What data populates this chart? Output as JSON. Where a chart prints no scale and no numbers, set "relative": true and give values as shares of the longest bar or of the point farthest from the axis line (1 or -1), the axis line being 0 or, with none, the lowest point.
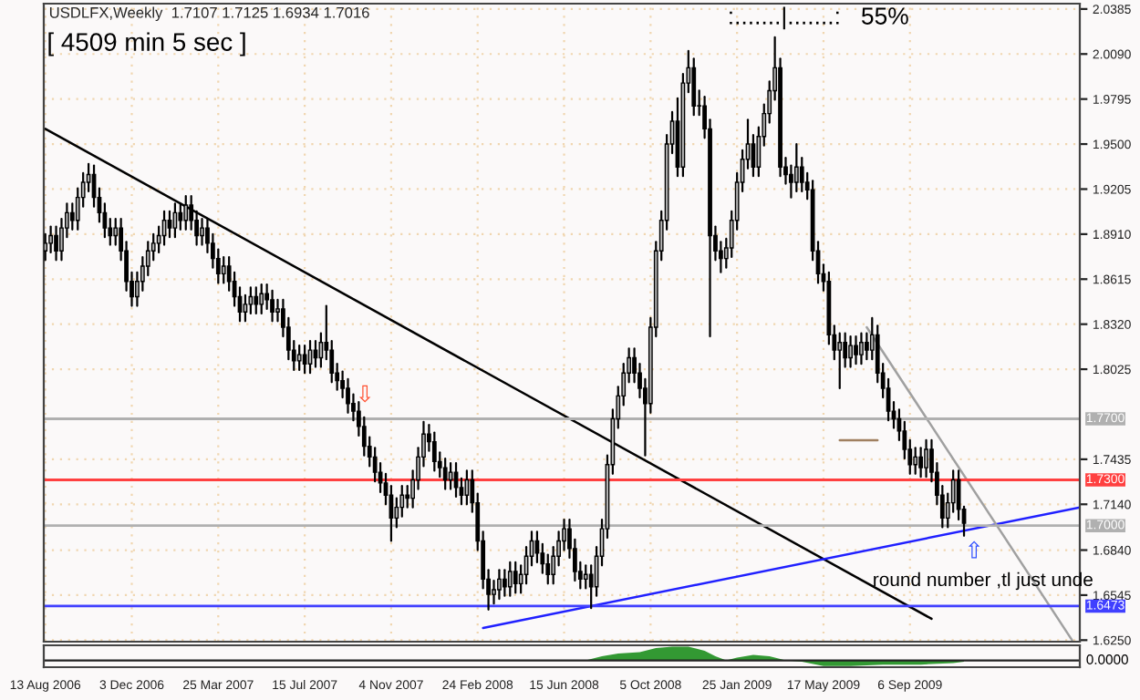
{
  "chart_data": [
    {
      "type": "candlestick",
      "title": "USDLFX,Weekly  1.7107 1.7125 1.6934 1.7016",
      "annotations": [
        "[ 4509 min 5 sec ]",
        ":.......|.......:   55%",
        "⇩",
        "⇧",
        "round number ,tl just unde"
      ],
      "x": [
        "2006-08-13",
        "2006-08-20",
        "2006-08-27",
        "2006-09-03",
        "2006-09-10",
        "2006-09-17",
        "2006-09-24",
        "2006-10-01",
        "2006-10-08",
        "2006-10-15",
        "2006-10-22",
        "2006-10-29",
        "2006-11-05",
        "2006-11-12",
        "2006-11-19",
        "2006-11-26",
        "2006-12-03",
        "2006-12-10",
        "2006-12-17",
        "2006-12-24",
        "2006-12-31",
        "2007-01-07",
        "2007-01-14",
        "2007-01-21",
        "2007-01-28",
        "2007-02-04",
        "2007-02-11",
        "2007-02-18",
        "2007-02-25",
        "2007-03-04",
        "2007-03-11",
        "2007-03-18",
        "2007-03-25",
        "2007-04-01",
        "2007-04-08",
        "2007-04-15",
        "2007-04-22",
        "2007-04-29",
        "2007-05-06",
        "2007-05-13",
        "2007-05-20",
        "2007-05-27",
        "2007-06-03",
        "2007-06-10",
        "2007-06-17",
        "2007-06-24",
        "2007-07-01",
        "2007-07-08",
        "2007-07-15",
        "2007-07-22",
        "2007-07-29",
        "2007-08-05",
        "2007-08-12",
        "2007-08-19",
        "2007-08-26",
        "2007-09-02",
        "2007-09-09",
        "2007-09-16",
        "2007-09-23",
        "2007-09-30",
        "2007-10-07",
        "2007-10-14",
        "2007-10-21",
        "2007-10-28",
        "2007-11-04",
        "2007-11-11",
        "2007-11-18",
        "2007-11-25",
        "2007-12-02",
        "2007-12-09",
        "2007-12-16",
        "2007-12-23",
        "2007-12-30",
        "2008-01-06",
        "2008-01-13",
        "2008-01-20",
        "2008-01-27",
        "2008-02-03",
        "2008-02-10",
        "2008-02-17",
        "2008-02-24",
        "2008-03-02",
        "2008-03-09",
        "2008-03-16",
        "2008-03-23",
        "2008-03-30",
        "2008-04-06",
        "2008-04-13",
        "2008-04-20",
        "2008-04-27",
        "2008-05-04",
        "2008-05-11",
        "2008-05-18",
        "2008-05-25",
        "2008-06-01",
        "2008-06-08",
        "2008-06-15",
        "2008-06-22",
        "2008-06-29",
        "2008-07-06",
        "2008-07-13",
        "2008-07-20",
        "2008-07-27",
        "2008-08-03",
        "2008-08-10",
        "2008-08-17",
        "2008-08-24",
        "2008-08-31",
        "2008-09-07",
        "2008-09-14",
        "2008-09-21",
        "2008-09-28",
        "2008-10-05",
        "2008-10-12",
        "2008-10-19",
        "2008-10-26",
        "2008-11-02",
        "2008-11-09",
        "2008-11-16",
        "2008-11-23",
        "2008-11-30",
        "2008-12-07",
        "2008-12-14",
        "2008-12-21",
        "2008-12-28",
        "2009-01-04",
        "2009-01-11",
        "2009-01-18",
        "2009-01-25",
        "2009-02-01",
        "2009-02-08",
        "2009-02-15",
        "2009-02-22",
        "2009-03-01",
        "2009-03-08",
        "2009-03-15",
        "2009-03-22",
        "2009-03-29",
        "2009-04-05",
        "2009-04-12",
        "2009-04-19",
        "2009-04-26",
        "2009-05-03",
        "2009-05-10",
        "2009-05-17",
        "2009-05-24",
        "2009-05-31",
        "2009-06-07",
        "2009-06-14",
        "2009-06-21",
        "2009-06-28",
        "2009-07-05",
        "2009-07-12",
        "2009-07-19",
        "2009-07-26",
        "2009-08-02",
        "2009-08-09",
        "2009-08-16",
        "2009-08-23",
        "2009-08-30",
        "2009-09-06",
        "2009-09-13",
        "2009-09-20",
        "2009-09-27",
        "2009-10-04",
        "2009-10-11",
        "2009-10-18",
        "2009-10-25",
        "2009-11-01",
        "2009-11-08",
        "2009-11-15"
      ],
      "ohlc": [
        [
          1.88,
          1.891,
          1.874,
          1.885
        ],
        [
          1.885,
          1.896,
          1.879,
          1.89
        ],
        [
          1.89,
          1.896,
          1.874,
          1.88
        ],
        [
          1.88,
          1.901,
          1.874,
          1.895
        ],
        [
          1.895,
          1.911,
          1.889,
          1.905
        ],
        [
          1.905,
          1.911,
          1.894,
          1.9
        ],
        [
          1.9,
          1.921,
          1.894,
          1.915
        ],
        [
          1.915,
          1.931,
          1.909,
          1.925
        ],
        [
          1.925,
          1.937,
          1.919,
          1.93
        ],
        [
          1.93,
          1.936,
          1.909,
          1.915
        ],
        [
          1.915,
          1.921,
          1.899,
          1.905
        ],
        [
          1.905,
          1.911,
          1.889,
          1.895
        ],
        [
          1.895,
          1.901,
          1.884,
          1.89
        ],
        [
          1.89,
          1.901,
          1.884,
          1.895
        ],
        [
          1.895,
          1.901,
          1.874,
          1.88
        ],
        [
          1.88,
          1.886,
          1.854,
          1.86
        ],
        [
          1.86,
          1.866,
          1.844,
          1.85
        ],
        [
          1.85,
          1.866,
          1.844,
          1.86
        ],
        [
          1.86,
          1.876,
          1.854,
          1.87
        ],
        [
          1.87,
          1.886,
          1.864,
          1.88
        ],
        [
          1.88,
          1.891,
          1.874,
          1.885
        ],
        [
          1.885,
          1.896,
          1.879,
          1.89
        ],
        [
          1.89,
          1.906,
          1.884,
          1.9
        ],
        [
          1.9,
          1.906,
          1.889,
          1.895
        ],
        [
          1.895,
          1.911,
          1.889,
          1.905
        ],
        [
          1.905,
          1.911,
          1.894,
          1.9
        ],
        [
          1.9,
          1.916,
          1.894,
          1.91
        ],
        [
          1.91,
          1.916,
          1.894,
          1.9
        ],
        [
          1.9,
          1.906,
          1.884,
          1.89
        ],
        [
          1.89,
          1.901,
          1.884,
          1.895
        ],
        [
          1.895,
          1.901,
          1.879,
          1.885
        ],
        [
          1.885,
          1.891,
          1.869,
          1.875
        ],
        [
          1.875,
          1.881,
          1.859,
          1.865
        ],
        [
          1.865,
          1.876,
          1.859,
          1.87
        ],
        [
          1.87,
          1.876,
          1.854,
          1.86
        ],
        [
          1.86,
          1.866,
          1.844,
          1.85
        ],
        [
          1.85,
          1.856,
          1.834,
          1.84
        ],
        [
          1.84,
          1.851,
          1.834,
          1.845
        ],
        [
          1.845,
          1.856,
          1.839,
          1.85
        ],
        [
          1.85,
          1.856,
          1.839,
          1.845
        ],
        [
          1.845,
          1.858,
          1.839,
          1.852
        ],
        [
          1.852,
          1.858,
          1.842,
          1.848
        ],
        [
          1.848,
          1.854,
          1.834,
          1.84
        ],
        [
          1.84,
          1.848,
          1.834,
          1.842
        ],
        [
          1.842,
          1.848,
          1.824,
          1.83
        ],
        [
          1.83,
          1.836,
          1.809,
          1.815
        ],
        [
          1.815,
          1.821,
          1.802,
          1.808
        ],
        [
          1.808,
          1.818,
          1.802,
          1.812
        ],
        [
          1.812,
          1.818,
          1.8,
          1.806
        ],
        [
          1.806,
          1.821,
          1.8,
          1.815
        ],
        [
          1.815,
          1.821,
          1.804,
          1.81
        ],
        [
          1.81,
          1.826,
          1.804,
          1.82
        ],
        [
          1.82,
          1.844,
          1.809,
          1.815
        ],
        [
          1.815,
          1.821,
          1.794,
          1.8
        ],
        [
          1.8,
          1.806,
          1.789,
          1.795
        ],
        [
          1.795,
          1.801,
          1.784,
          1.79
        ],
        [
          1.79,
          1.796,
          1.774,
          1.78
        ],
        [
          1.78,
          1.786,
          1.769,
          1.775
        ],
        [
          1.775,
          1.781,
          1.759,
          1.765
        ],
        [
          1.765,
          1.771,
          1.746,
          1.752
        ],
        [
          1.752,
          1.758,
          1.739,
          1.745
        ],
        [
          1.745,
          1.751,
          1.729,
          1.735
        ],
        [
          1.735,
          1.741,
          1.722,
          1.728
        ],
        [
          1.728,
          1.734,
          1.714,
          1.72
        ],
        [
          1.72,
          1.726,
          1.69,
          1.705
        ],
        [
          1.705,
          1.718,
          1.699,
          1.712
        ],
        [
          1.712,
          1.726,
          1.706,
          1.72
        ],
        [
          1.72,
          1.726,
          1.712,
          1.718
        ],
        [
          1.718,
          1.736,
          1.712,
          1.73
        ],
        [
          1.73,
          1.751,
          1.724,
          1.745
        ],
        [
          1.745,
          1.768,
          1.739,
          1.76
        ],
        [
          1.76,
          1.766,
          1.749,
          1.755
        ],
        [
          1.755,
          1.761,
          1.736,
          1.742
        ],
        [
          1.742,
          1.748,
          1.732,
          1.738
        ],
        [
          1.738,
          1.744,
          1.724,
          1.73
        ],
        [
          1.73,
          1.741,
          1.724,
          1.735
        ],
        [
          1.735,
          1.741,
          1.719,
          1.725
        ],
        [
          1.725,
          1.731,
          1.714,
          1.72
        ],
        [
          1.72,
          1.736,
          1.714,
          1.73
        ],
        [
          1.73,
          1.736,
          1.709,
          1.715
        ],
        [
          1.715,
          1.721,
          1.684,
          1.69
        ],
        [
          1.69,
          1.696,
          1.659,
          1.665
        ],
        [
          1.665,
          1.671,
          1.645,
          1.655
        ],
        [
          1.655,
          1.664,
          1.649,
          1.658
        ],
        [
          1.658,
          1.671,
          1.652,
          1.665
        ],
        [
          1.665,
          1.671,
          1.654,
          1.66
        ],
        [
          1.66,
          1.676,
          1.654,
          1.67
        ],
        [
          1.67,
          1.676,
          1.656,
          1.662
        ],
        [
          1.662,
          1.674,
          1.656,
          1.668
        ],
        [
          1.668,
          1.686,
          1.662,
          1.68
        ],
        [
          1.68,
          1.696,
          1.674,
          1.69
        ],
        [
          1.69,
          1.696,
          1.676,
          1.682
        ],
        [
          1.682,
          1.688,
          1.669,
          1.675
        ],
        [
          1.675,
          1.681,
          1.662,
          1.668
        ],
        [
          1.668,
          1.686,
          1.662,
          1.68
        ],
        [
          1.68,
          1.696,
          1.674,
          1.69
        ],
        [
          1.69,
          1.704,
          1.684,
          1.698
        ],
        [
          1.698,
          1.704,
          1.679,
          1.685
        ],
        [
          1.685,
          1.691,
          1.664,
          1.67
        ],
        [
          1.67,
          1.676,
          1.659,
          1.665
        ],
        [
          1.665,
          1.674,
          1.659,
          1.668
        ],
        [
          1.668,
          1.674,
          1.646,
          1.66
        ],
        [
          1.66,
          1.686,
          1.654,
          1.68
        ],
        [
          1.68,
          1.704,
          1.674,
          1.698
        ],
        [
          1.698,
          1.746,
          1.692,
          1.74
        ],
        [
          1.74,
          1.776,
          1.734,
          1.77
        ],
        [
          1.77,
          1.791,
          1.764,
          1.785
        ],
        [
          1.785,
          1.806,
          1.779,
          1.8
        ],
        [
          1.8,
          1.816,
          1.794,
          1.81
        ],
        [
          1.81,
          1.816,
          1.794,
          1.8
        ],
        [
          1.8,
          1.806,
          1.784,
          1.79
        ],
        [
          1.79,
          1.796,
          1.746,
          1.78
        ],
        [
          1.78,
          1.836,
          1.774,
          1.83
        ],
        [
          1.83,
          1.886,
          1.824,
          1.88
        ],
        [
          1.88,
          1.906,
          1.874,
          1.9
        ],
        [
          1.9,
          1.956,
          1.894,
          1.95
        ],
        [
          1.95,
          1.971,
          1.944,
          1.965
        ],
        [
          1.965,
          1.98,
          1.929,
          1.935
        ],
        [
          1.935,
          1.996,
          1.929,
          1.99
        ],
        [
          1.99,
          2.011,
          1.984,
          2.0
        ],
        [
          2.0,
          2.006,
          1.969,
          1.975
        ],
        [
          1.975,
          1.985,
          1.969,
          1.975
        ],
        [
          1.975,
          1.981,
          1.954,
          1.96
        ],
        [
          1.96,
          1.966,
          1.824,
          1.89
        ],
        [
          1.89,
          1.896,
          1.874,
          1.88
        ],
        [
          1.88,
          1.886,
          1.866,
          1.875
        ],
        [
          1.875,
          1.888,
          1.869,
          1.882
        ],
        [
          1.882,
          1.906,
          1.876,
          1.9
        ],
        [
          1.9,
          1.931,
          1.894,
          1.925
        ],
        [
          1.925,
          1.946,
          1.919,
          1.94
        ],
        [
          1.94,
          1.966,
          1.934,
          1.95
        ],
        [
          1.95,
          1.956,
          1.929,
          1.935
        ],
        [
          1.935,
          1.961,
          1.929,
          1.955
        ],
        [
          1.955,
          1.976,
          1.949,
          1.97
        ],
        [
          1.97,
          1.991,
          1.964,
          1.985
        ],
        [
          1.985,
          2.02,
          1.979,
          2.0
        ],
        [
          2.0,
          2.006,
          1.929,
          1.935
        ],
        [
          1.935,
          1.941,
          1.924,
          1.93
        ],
        [
          1.93,
          1.936,
          1.915,
          1.925
        ],
        [
          1.925,
          1.95,
          1.919,
          1.935
        ],
        [
          1.935,
          1.941,
          1.919,
          1.925
        ],
        [
          1.925,
          1.931,
          1.914,
          1.92
        ],
        [
          1.92,
          1.926,
          1.874,
          1.88
        ],
        [
          1.88,
          1.886,
          1.859,
          1.865
        ],
        [
          1.865,
          1.871,
          1.854,
          1.86
        ],
        [
          1.86,
          1.866,
          1.819,
          1.825
        ],
        [
          1.825,
          1.831,
          1.809,
          1.815
        ],
        [
          1.815,
          1.826,
          1.79,
          1.82
        ],
        [
          1.82,
          1.826,
          1.804,
          1.81
        ],
        [
          1.81,
          1.824,
          1.804,
          1.818
        ],
        [
          1.818,
          1.824,
          1.806,
          1.812
        ],
        [
          1.812,
          1.826,
          1.806,
          1.82
        ],
        [
          1.82,
          1.826,
          1.809,
          1.815
        ],
        [
          1.815,
          1.836,
          1.809,
          1.825
        ],
        [
          1.825,
          1.831,
          1.794,
          1.8
        ],
        [
          1.8,
          1.806,
          1.784,
          1.79
        ],
        [
          1.79,
          1.796,
          1.769,
          1.775
        ],
        [
          1.775,
          1.781,
          1.764,
          1.77
        ],
        [
          1.77,
          1.776,
          1.756,
          1.762
        ],
        [
          1.762,
          1.768,
          1.744,
          1.75
        ],
        [
          1.75,
          1.756,
          1.734,
          1.74
        ],
        [
          1.74,
          1.751,
          1.734,
          1.745
        ],
        [
          1.745,
          1.751,
          1.732,
          1.738
        ],
        [
          1.738,
          1.756,
          1.732,
          1.75
        ],
        [
          1.75,
          1.756,
          1.729,
          1.735
        ],
        [
          1.735,
          1.741,
          1.714,
          1.72
        ],
        [
          1.72,
          1.726,
          1.699,
          1.705
        ],
        [
          1.705,
          1.721,
          1.699,
          1.715
        ],
        [
          1.715,
          1.736,
          1.709,
          1.73
        ],
        [
          1.73,
          1.736,
          1.704,
          1.7107
        ],
        [
          1.7107,
          1.7125,
          1.6934,
          1.7016
        ]
      ],
      "series": [
        {
          "type": "line",
          "color": "#000000",
          "x": [
            "2006-08-13",
            "2009-10-04"
          ],
          "values": [
            1.96,
            1.639
          ]
        },
        {
          "type": "line",
          "color": "#2020ff",
          "x": [
            "2008-03-02",
            "2010-04-14"
          ],
          "values": [
            1.633,
            1.712
          ]
        },
        {
          "type": "line",
          "color": "#a0a0a0",
          "x": [
            "2009-07-12",
            "2010-04-04"
          ],
          "values": [
            1.83,
            1.625
          ]
        },
        {
          "type": "line",
          "color": "#a08060",
          "x": [
            "2009-06-07",
            "2009-07-26"
          ],
          "values": [
            1.756,
            1.756
          ]
        }
      ],
      "ref_lines": [
        {
          "axis": "y",
          "value": 1.77,
          "label": "1.7700",
          "color": "#b0b0b0"
        },
        {
          "axis": "y",
          "value": 1.73,
          "label": "1.7300",
          "color": "#ff4040"
        },
        {
          "axis": "y",
          "value": 1.7,
          "label": "1.7000",
          "color": "#b0b0b0"
        },
        {
          "axis": "y",
          "value": 1.6473,
          "label": "1.6473",
          "color": "#4040ff"
        }
      ],
      "xlim": [
        "2006-08-11",
        "2010-04-14"
      ],
      "xticks": [
        {
          "value": "2006-08-13",
          "label": null
        },
        {
          "value": "2006-12-03",
          "label": null
        },
        {
          "value": "2007-03-25",
          "label": null
        },
        {
          "value": "2007-07-15",
          "label": null
        },
        {
          "value": "2007-11-04",
          "label": null
        },
        {
          "value": "2008-02-24",
          "label": null
        },
        {
          "value": "2008-06-15",
          "label": null
        },
        {
          "value": "2008-10-05",
          "label": null
        },
        {
          "value": "2009-01-25",
          "label": null
        },
        {
          "value": "2009-05-17",
          "label": null
        },
        {
          "value": "2009-09-06",
          "label": null
        }
      ],
      "ylim": [
        1.624,
        2.042
      ],
      "yticks": [
        {
          "value": 2.0385,
          "label": "2.0385"
        },
        {
          "value": 2.009,
          "label": "2.0090"
        },
        {
          "value": 1.9795,
          "label": "1.9795"
        },
        {
          "value": 1.95,
          "label": "1.9500"
        },
        {
          "value": 1.9205,
          "label": "1.9205"
        },
        {
          "value": 1.891,
          "label": "1.8910"
        },
        {
          "value": 1.8615,
          "label": "1.8615"
        },
        {
          "value": 1.832,
          "label": "1.8320"
        },
        {
          "value": 1.8025,
          "label": "1.8025"
        },
        {
          "value": 1.7435,
          "label": "1.7435"
        },
        {
          "value": 1.714,
          "label": "1.7140"
        },
        {
          "value": 1.684,
          "label": "1.6840"
        },
        {
          "value": 1.6545,
          "label": "1.6545"
        },
        {
          "value": 1.625,
          "label": "1.6250"
        }
      ],
      "tick_labels": "y",
      "grid": true
    },
    {
      "type": "area",
      "relative": true,
      "annotations": [
        "0.0000"
      ],
      "series": [
        {
          "color": "#339933",
          "x": [
            "2006-08-13",
            "2008-02-24",
            "2008-07-13",
            "2008-08-03",
            "2008-08-24",
            "2008-09-21",
            "2008-10-12",
            "2008-11-02",
            "2008-11-23",
            "2008-12-14",
            "2008-12-28",
            "2009-01-11",
            "2009-01-25",
            "2009-02-15",
            "2009-03-08",
            "2009-03-29",
            "2009-04-19",
            "2009-05-17",
            "2009-06-21",
            "2009-08-02",
            "2009-09-20",
            "2009-11-01",
            "2009-11-15"
          ],
          "values": [
            0,
            0,
            0,
            0.3,
            0.5,
            0.6,
            0.9,
            1.0,
            1.0,
            0.7,
            0.3,
            0,
            0.2,
            0.4,
            0.3,
            0,
            -0.1,
            -0.4,
            -0.4,
            -0.3,
            -0.3,
            -0.2,
            -0.1
          ]
        }
      ],
      "xlim": [
        "2006-08-11",
        "2010-04-14"
      ],
      "xticks": [
        {
          "value": "2006-08-13",
          "label": "13 Aug 2006"
        },
        {
          "value": "2006-12-03",
          "label": "3 Dec 2006"
        },
        {
          "value": "2007-03-25",
          "label": "25 Mar 2007"
        },
        {
          "value": "2007-07-15",
          "label": "15 Jul 2007"
        },
        {
          "value": "2007-11-04",
          "label": "4 Nov 2007"
        },
        {
          "value": "2008-02-24",
          "label": "24 Feb 2008"
        },
        {
          "value": "2008-06-15",
          "label": "15 Jun 2008"
        },
        {
          "value": "2008-10-05",
          "label": "5 Oct 2008"
        },
        {
          "value": "2009-01-25",
          "label": "25 Jan 2009"
        },
        {
          "value": "2009-05-17",
          "label": "17 May 2009"
        },
        {
          "value": "2009-09-06",
          "label": "6 Sep 2009"
        }
      ],
      "tick_labels": "x",
      "grid": false
    }
  ]
}
